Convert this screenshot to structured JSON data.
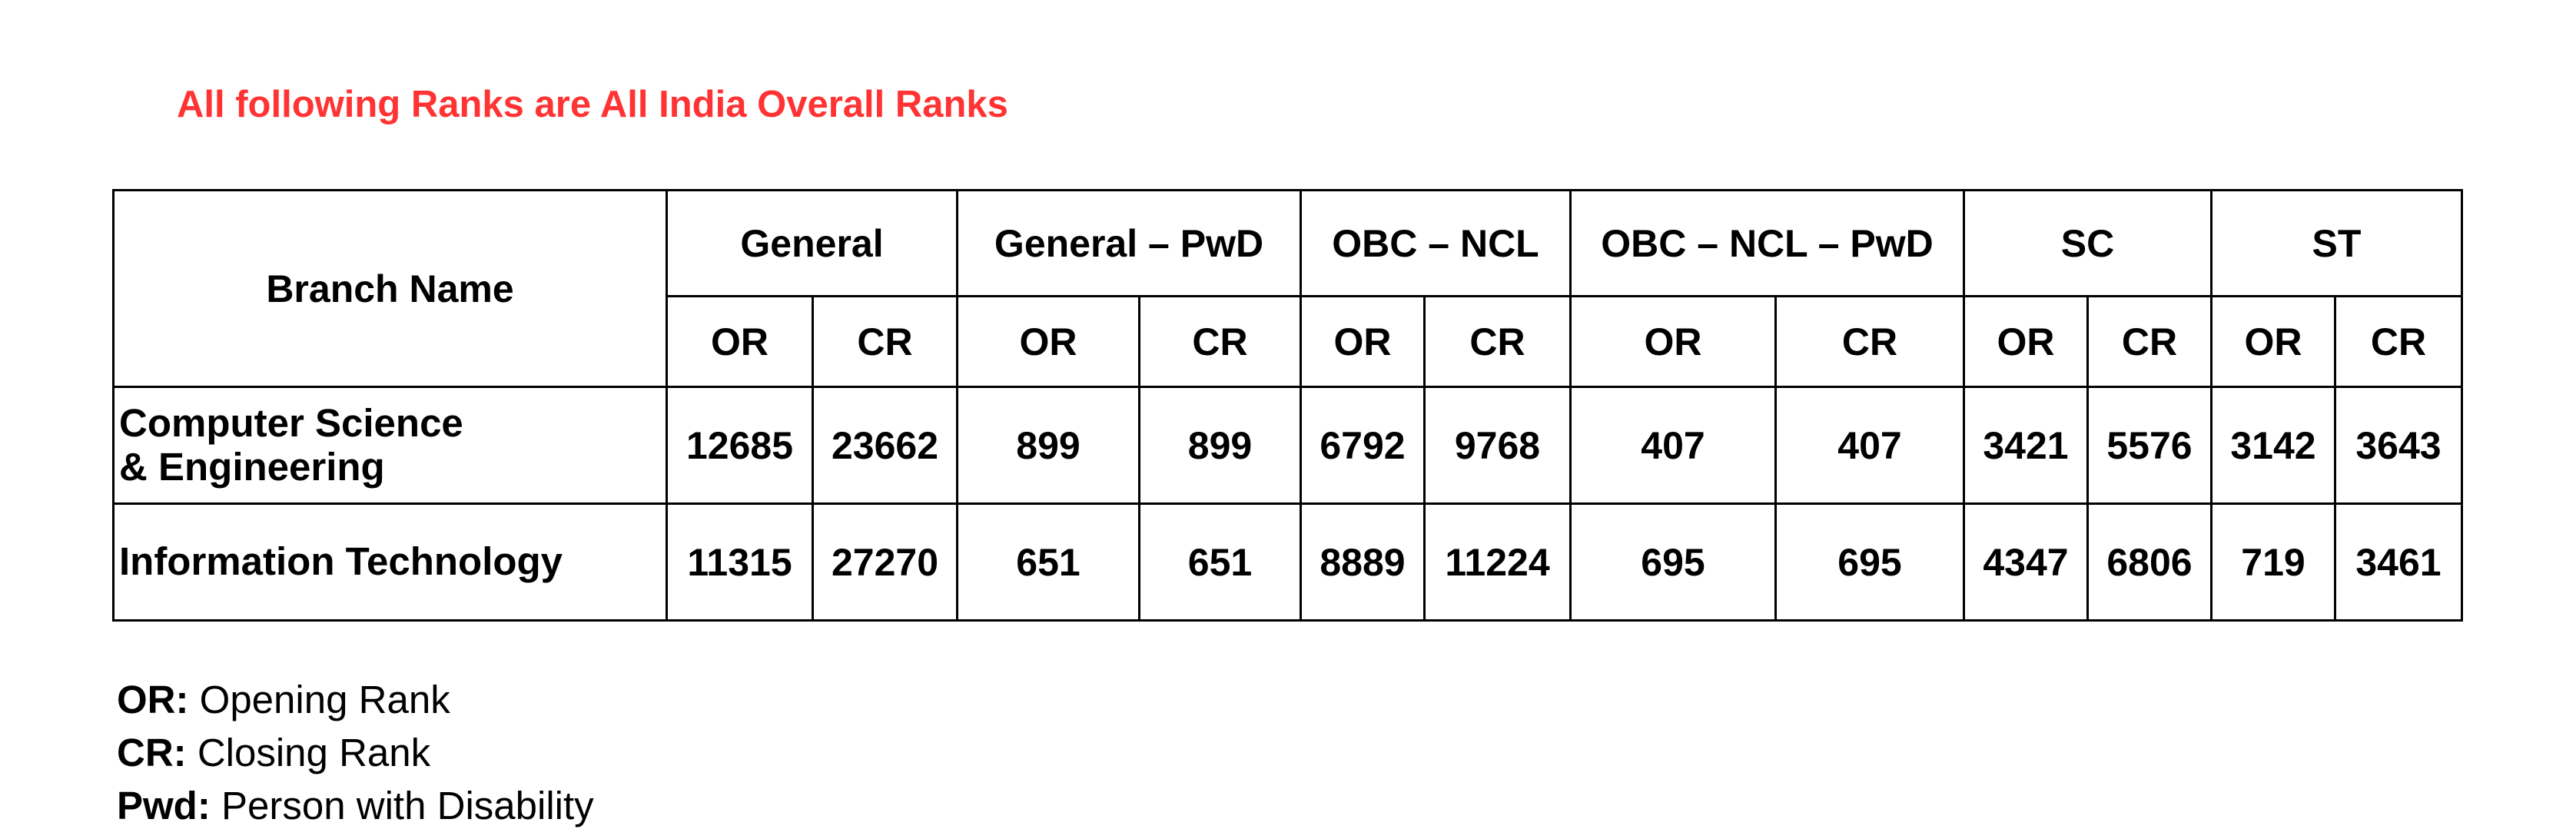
{
  "heading": "All following Ranks are All India Overall Ranks",
  "table": {
    "branch_header": "Branch Name",
    "groups": [
      "General",
      "General – PwD",
      "OBC – NCL",
      "OBC – NCL – PwD",
      "SC",
      "ST"
    ],
    "sub_headers": [
      "OR",
      "CR",
      "OR",
      "CR",
      "OR",
      "CR",
      "OR",
      "CR",
      "OR",
      "CR",
      "OR",
      "CR"
    ],
    "rows": [
      {
        "branch_lines": [
          "Computer Science",
          "& Engineering"
        ],
        "values": [
          "12685",
          "23662",
          "899",
          "899",
          "6792",
          "9768",
          "407",
          "407",
          "3421",
          "5576",
          "3142",
          "3643"
        ]
      },
      {
        "branch_lines": [
          "Information Technology"
        ],
        "values": [
          "11315",
          "27270",
          "651",
          "651",
          "8889",
          "11224",
          "695",
          "695",
          "4347",
          "6806",
          "719",
          "3461"
        ]
      }
    ]
  },
  "legend": [
    {
      "key": "OR:",
      "text": " Opening Rank"
    },
    {
      "key": "CR:",
      "text": " Closing Rank"
    },
    {
      "key": "Pwd:",
      "text": " Person with Disability"
    }
  ]
}
